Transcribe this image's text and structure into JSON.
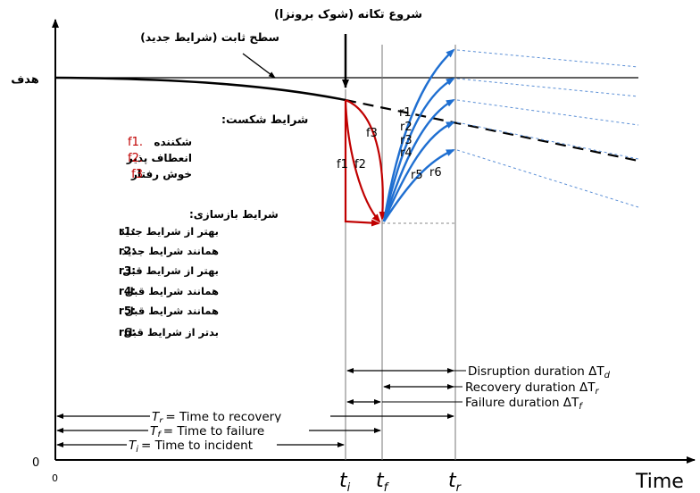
{
  "title": "شروع تکانه (شوک برونزا)",
  "labels": {
    "new_level": "سطح ثابت (شرایط جدید)",
    "target": "هدف",
    "zero_y": "0",
    "zero_x": "0",
    "time": "Time",
    "ti": "t",
    "ti_sub": "i",
    "tf": "t",
    "tf_sub": "f",
    "tr": "t",
    "tr_sub": "r"
  },
  "failure_conditions": {
    "heading": "شرایط شکست:",
    "items": [
      {
        "code": "f1.",
        "text": "شکننده"
      },
      {
        "code": "f2.",
        "text": "انعطاف پذیر"
      },
      {
        "code": "f3",
        "text": "خوش رفتار"
      }
    ]
  },
  "recovery_conditions": {
    "heading": "شرایط بازسازی:",
    "items": [
      {
        "code": "r1:",
        "text": "بهتر از شرایط جدید"
      },
      {
        "code": "r2:",
        "text": "همانند شرایط جدید"
      },
      {
        "code": "r3:",
        "text": "بهتر از شرایط قبل"
      },
      {
        "code": "r4:",
        "text": "همانند شرایط قبل"
      },
      {
        "code": "r5:",
        "text": "همانند شرایط قبل"
      },
      {
        "code": "r6:",
        "text": "بدتر از شرایط قبل"
      }
    ]
  },
  "curve_labels": {
    "f1": "f1",
    "f2": "f2",
    "f3": "f3",
    "r1": "r1",
    "r2": "r2",
    "r3": "r3",
    "r4": "r4",
    "r5": "r5",
    "r6": "r6"
  },
  "durations": {
    "disruption": "Disruption duration ΔT",
    "disruption_sub": "d",
    "recovery": "Recovery duration ΔT",
    "recovery_sub": "r",
    "failure": "Failure duration ΔT",
    "failure_sub": "f"
  },
  "times": {
    "time_to_recovery": "= Time to recovery",
    "time_to_recovery_sym": "T",
    "time_to_recovery_sub": "r",
    "time_to_failure": "= Time to failure",
    "time_to_failure_sym": "T",
    "time_to_failure_sub": "f",
    "time_to_incident": "= Time to incident",
    "time_to_incident_sym": "T",
    "time_to_incident_sub": "i"
  },
  "colors": {
    "failure": "#c00000",
    "recovery": "#1f6fd1",
    "dotted": "#5b8fd6"
  }
}
